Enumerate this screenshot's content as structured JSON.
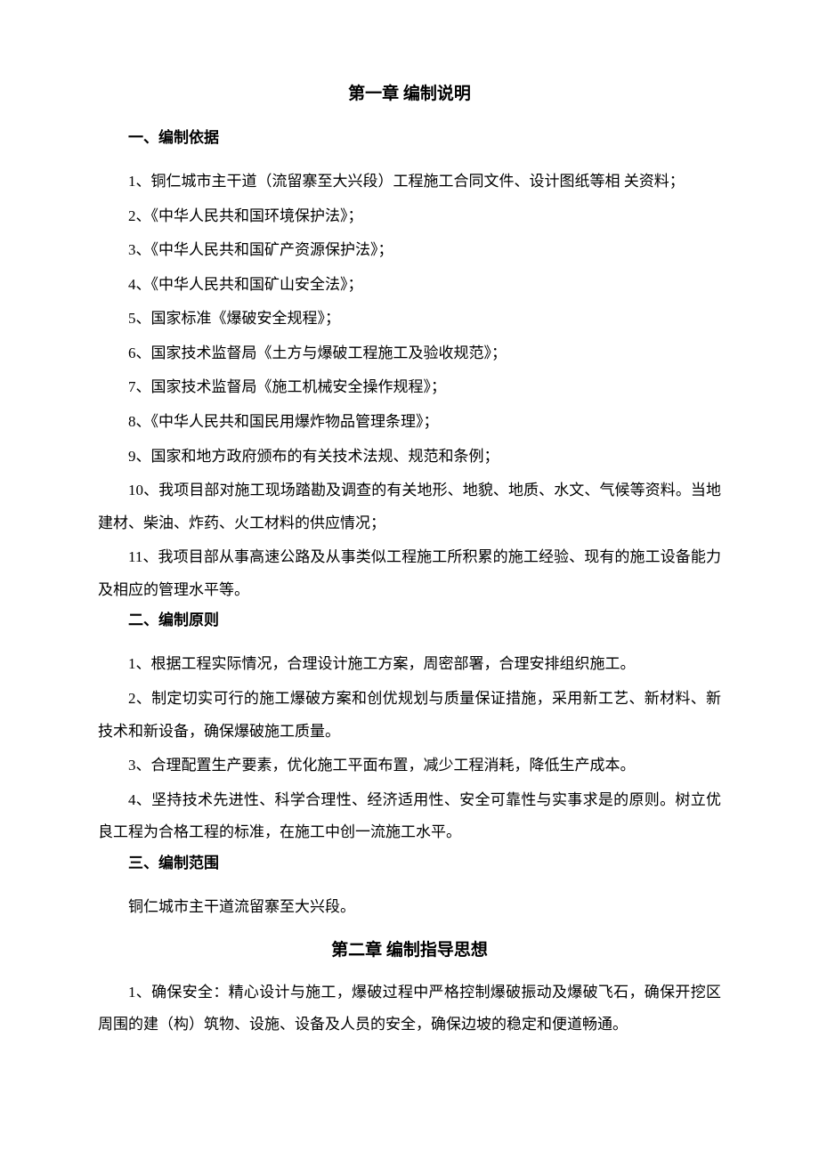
{
  "document": {
    "background_color": "#ffffff",
    "text_color": "#000000",
    "font_family": "SimSun",
    "body_fontsize": 17,
    "title_fontsize": 19,
    "line_height": 2.15,
    "text_indent_em": 2
  },
  "chapter1": {
    "title": "第一章 编制说明",
    "section1": {
      "heading": "一、编制依据",
      "items": [
        "1、铜仁城市主干道（流留寨至大兴段）工程施工合同文件、设计图纸等相 关资料；",
        "2、《中华人民共和国环境保护法》；",
        "3、《中华人民共和国矿产资源保护法》；",
        "4、《中华人民共和国矿山安全法》；",
        "5、国家标准《爆破安全规程》；",
        "6、国家技术监督局《土方与爆破工程施工及验收规范》；",
        "7、国家技术监督局《施工机械安全操作规程》；",
        "8、《中华人民共和国民用爆炸物品管理条理》；",
        "9、国家和地方政府颁布的有关技术法规、规范和条例；",
        "10、我项目部对施工现场踏勘及调查的有关地形、地貌、地质、水文、气候等资料。当地建材、柴油、炸药、火工材料的供应情况；",
        "11、我项目部从事高速公路及从事类似工程施工所积累的施工经验、现有的施工设备能力及相应的管理水平等。"
      ]
    },
    "section2": {
      "heading": "二、编制原则",
      "items": [
        "1、根据工程实际情况，合理设计施工方案，周密部署，合理安排组织施工。",
        "2、制定切实可行的施工爆破方案和创优规划与质量保证措施，采用新工艺、新材料、新技术和新设备，确保爆破施工质量。",
        "3、合理配置生产要素，优化施工平面布置，减少工程消耗，降低生产成本。",
        "4、坚持技术先进性、科学合理性、经济适用性、安全可靠性与实事求是的原则。树立优良工程为合格工程的标准，在施工中创一流施工水平。"
      ]
    },
    "section3": {
      "heading": "三、编制范围",
      "text": "铜仁城市主干道流留寨至大兴段。"
    }
  },
  "chapter2": {
    "title": "第二章 编制指导思想",
    "items": [
      "1、确保安全：精心设计与施工，爆破过程中严格控制爆破振动及爆破飞石，确保开挖区周围的建（构）筑物、设施、设备及人员的安全，确保边坡的稳定和便道畅通。"
    ]
  }
}
